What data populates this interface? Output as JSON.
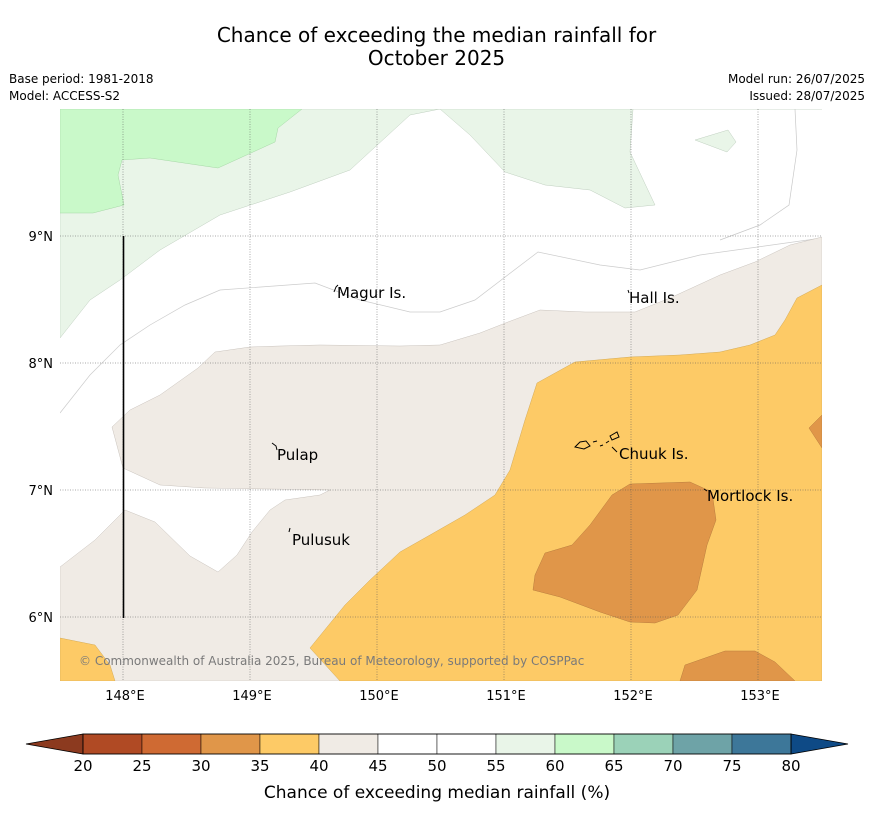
{
  "title": {
    "line1": "Chance of exceeding the median rainfall for",
    "line2": "October 2025"
  },
  "meta": {
    "base_period": "Base period: 1981-2018",
    "model": "Model: ACCESS-S2",
    "model_run": "Model run: 26/07/2025",
    "issued": "Issued: 28/07/2025"
  },
  "map": {
    "lon_ticks": [
      "148°E",
      "149°E",
      "150°E",
      "151°E",
      "152°E",
      "153°E"
    ],
    "lat_ticks": [
      "9°N",
      "8°N",
      "7°N",
      "6°N"
    ],
    "places": [
      {
        "name": "Magur Is."
      },
      {
        "name": "Hall Is."
      },
      {
        "name": "Pulap"
      },
      {
        "name": "Chuuk Is."
      },
      {
        "name": "Mortlock Is."
      },
      {
        "name": "Pulusuk"
      }
    ],
    "copyright": "© Commonwealth of Australia 2025, Bureau of Meteorology, supported by COSPPac"
  },
  "colorbar": {
    "label": "Chance of exceeding median rainfall (%)",
    "ticks": [
      "20",
      "25",
      "30",
      "35",
      "40",
      "45",
      "50",
      "55",
      "60",
      "65",
      "70",
      "75",
      "80"
    ],
    "under_color": "#8c3a1f",
    "over_color": "#0e4a86",
    "bin_colors": [
      "#b04a24",
      "#cf6a33",
      "#e09649",
      "#fdca66",
      "#f0ebe5",
      "#ffffff",
      "#ffffff",
      "#e9f5e8",
      "#c9f9c9",
      "#9bd2b8",
      "#6ea3a7",
      "#3d7799"
    ]
  }
}
